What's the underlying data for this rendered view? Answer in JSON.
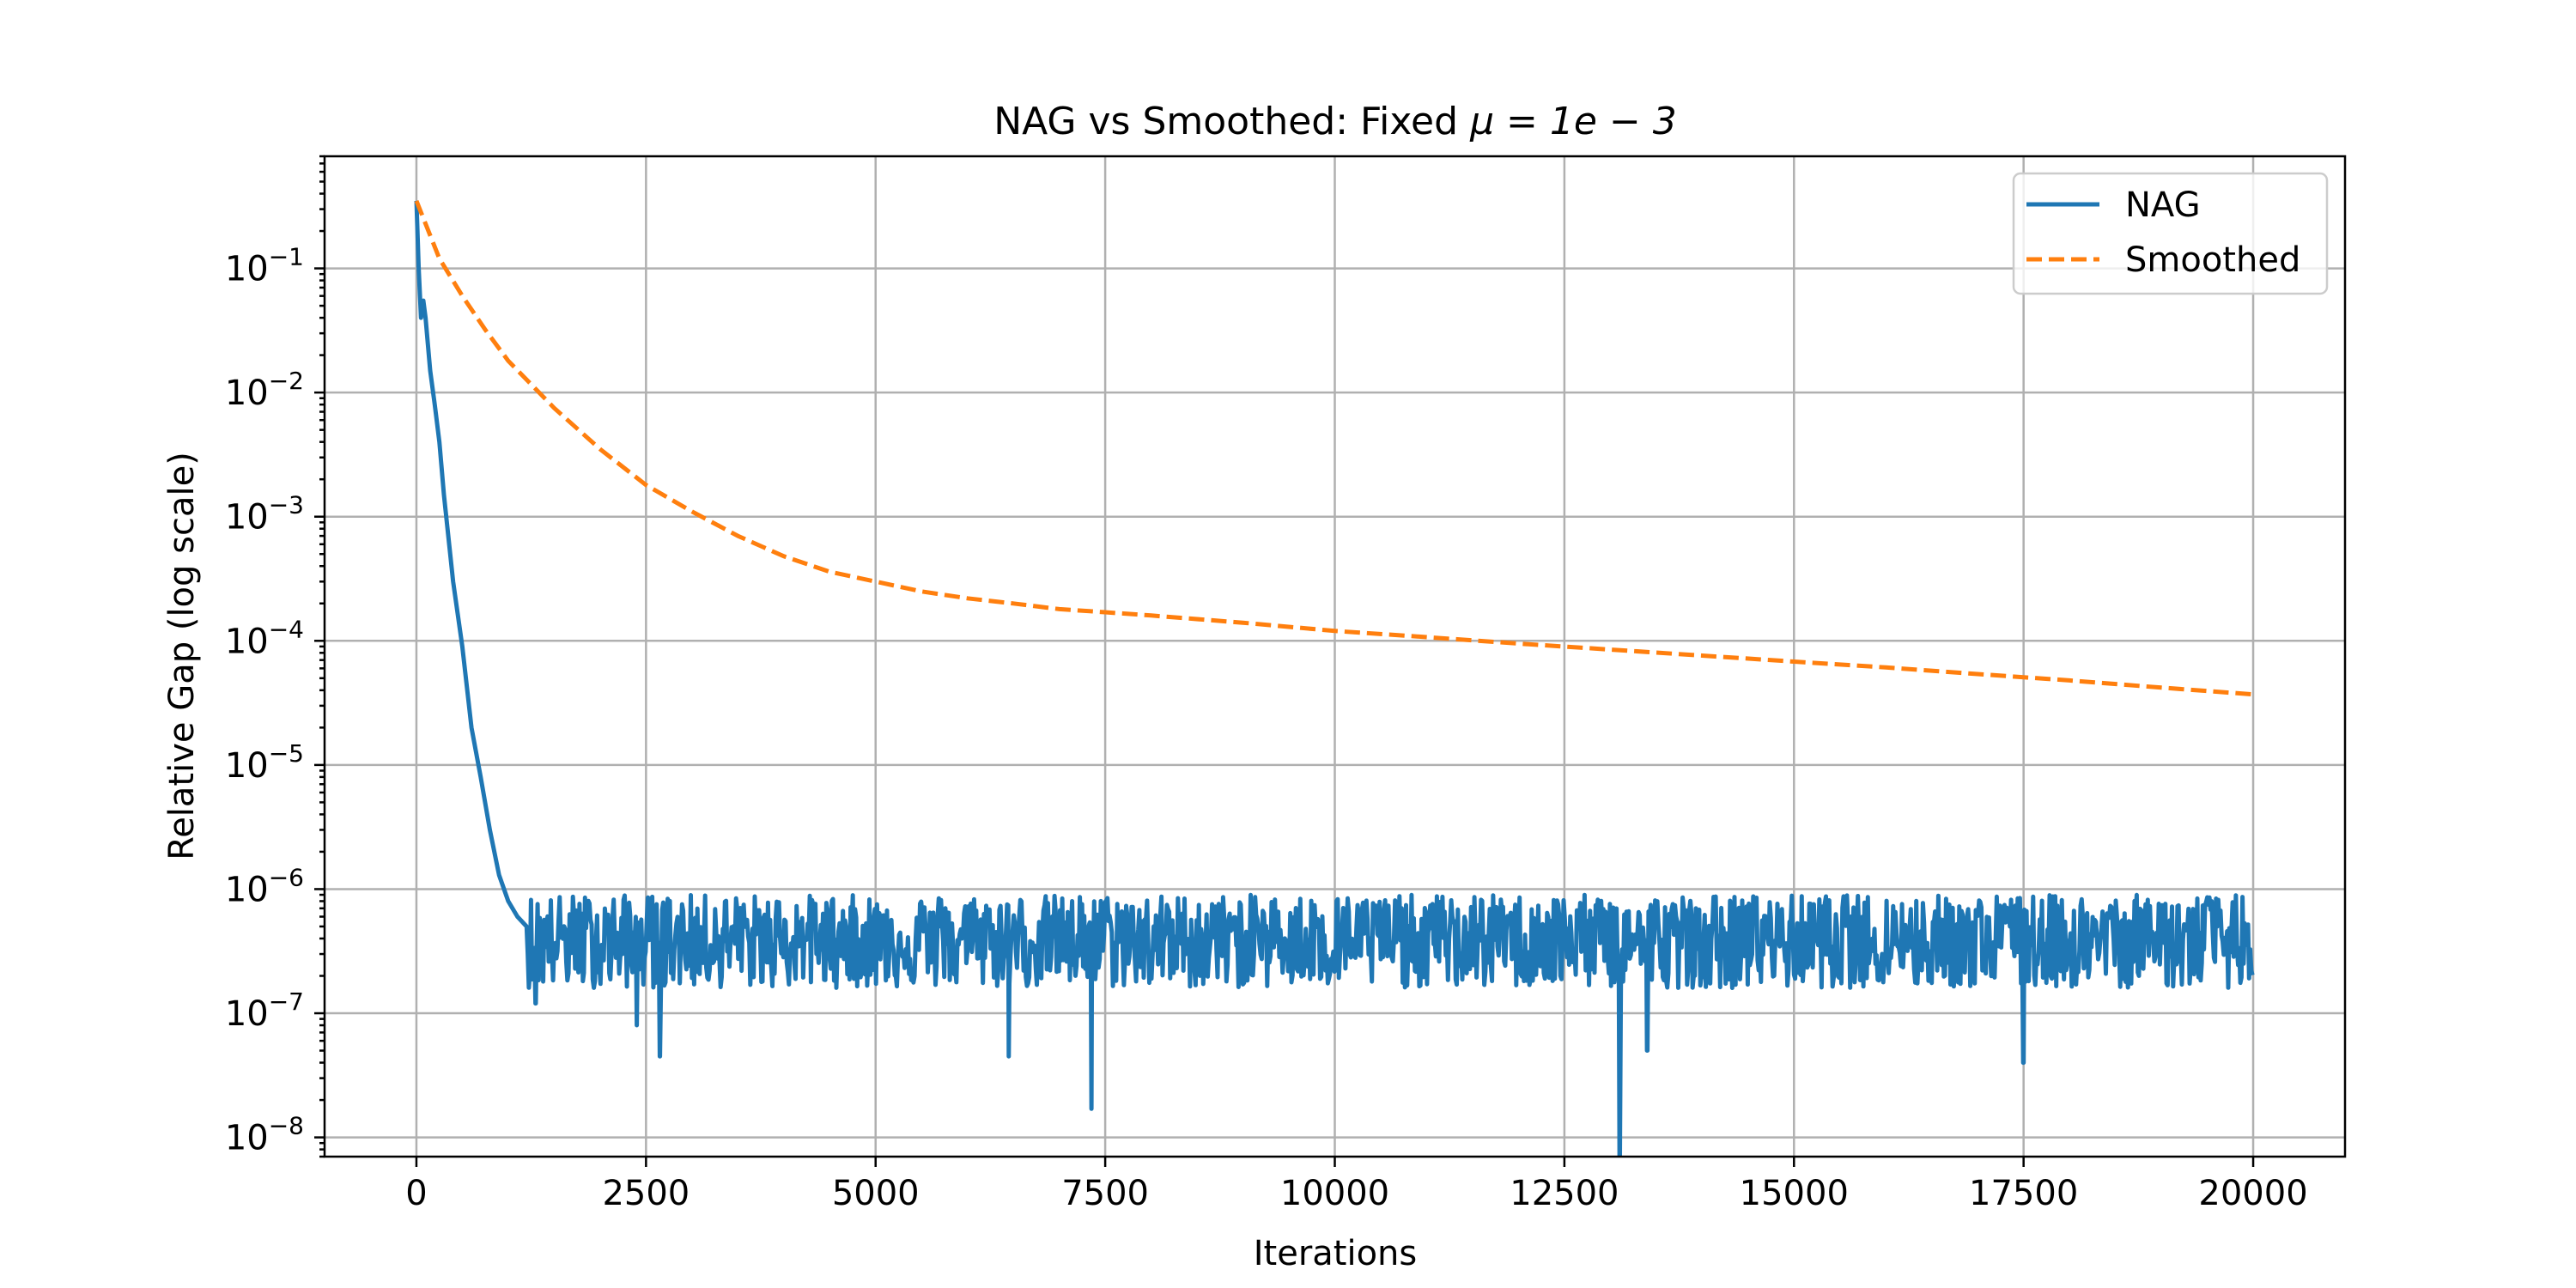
{
  "chart_data": {
    "type": "line",
    "title": "NAG vs Smoothed: Fixed",
    "title_math": "μ = 1e − 3",
    "xlabel": "Iterations",
    "ylabel": "Relative Gap (log scale)",
    "xlim": [
      -1000,
      21000
    ],
    "ylim": [
      7e-09,
      0.8
    ],
    "yscale": "log",
    "grid": true,
    "legend_position": "top-right",
    "x_ticks": [
      0,
      2500,
      5000,
      7500,
      10000,
      12500,
      15000,
      17500,
      20000
    ],
    "y_ticks": [
      {
        "base": "10",
        "exp": "−8",
        "value": 1e-08
      },
      {
        "base": "10",
        "exp": "−7",
        "value": 1e-07
      },
      {
        "base": "10",
        "exp": "−6",
        "value": 1e-06
      },
      {
        "base": "10",
        "exp": "−5",
        "value": 1e-05
      },
      {
        "base": "10",
        "exp": "−4",
        "value": 0.0001
      },
      {
        "base": "10",
        "exp": "−3",
        "value": 0.001
      },
      {
        "base": "10",
        "exp": "−2",
        "value": 0.01
      },
      {
        "base": "10",
        "exp": "−1",
        "value": 0.1
      }
    ],
    "series": [
      {
        "name": "NAG",
        "color": "#1f77b4",
        "style": "solid",
        "x": [
          0,
          25,
          50,
          75,
          100,
          150,
          200,
          250,
          300,
          400,
          500,
          600,
          700,
          800,
          900,
          1000,
          1100,
          1200
        ],
        "y": [
          0.35,
          0.1,
          0.04,
          0.055,
          0.04,
          0.015,
          0.008,
          0.004,
          0.0015,
          0.0003,
          9e-05,
          2e-05,
          8e-06,
          3e-06,
          1.3e-06,
          8e-07,
          6e-07,
          5e-07
        ],
        "noise_band": {
          "x_start": 1200,
          "x_end": 20000,
          "y_low": 1.6e-07,
          "y_high": 9e-07,
          "typical": 4e-07
        },
        "dips": [
          {
            "x": 1300,
            "y": 1.2e-07
          },
          {
            "x": 2400,
            "y": 8e-08
          },
          {
            "x": 2650,
            "y": 4.5e-08
          },
          {
            "x": 6450,
            "y": 4.5e-08
          },
          {
            "x": 7350,
            "y": 1.7e-08
          },
          {
            "x": 13100,
            "y": 7e-09
          },
          {
            "x": 13400,
            "y": 5e-08
          },
          {
            "x": 17500,
            "y": 4e-08
          }
        ]
      },
      {
        "name": "Smoothed",
        "color": "#ff7f0e",
        "style": "dashed",
        "x": [
          0,
          250,
          500,
          750,
          1000,
          1500,
          2000,
          2500,
          3000,
          3500,
          4000,
          4500,
          5000,
          5500,
          6000,
          6500,
          7000,
          7500,
          8000,
          9000,
          10000,
          11000,
          12000,
          13000,
          14000,
          15000,
          16000,
          17000,
          18000,
          19000,
          20000
        ],
        "y": [
          0.35,
          0.12,
          0.06,
          0.032,
          0.018,
          0.0075,
          0.0035,
          0.0018,
          0.0011,
          0.0007,
          0.00048,
          0.00036,
          0.0003,
          0.00025,
          0.00022,
          0.0002,
          0.00018,
          0.00017,
          0.00016,
          0.00014,
          0.00012,
          0.000107,
          9.5e-05,
          8.5e-05,
          7.6e-05,
          6.8e-05,
          6.1e-05,
          5.4e-05,
          4.8e-05,
          4.2e-05,
          3.7e-05
        ]
      }
    ]
  }
}
